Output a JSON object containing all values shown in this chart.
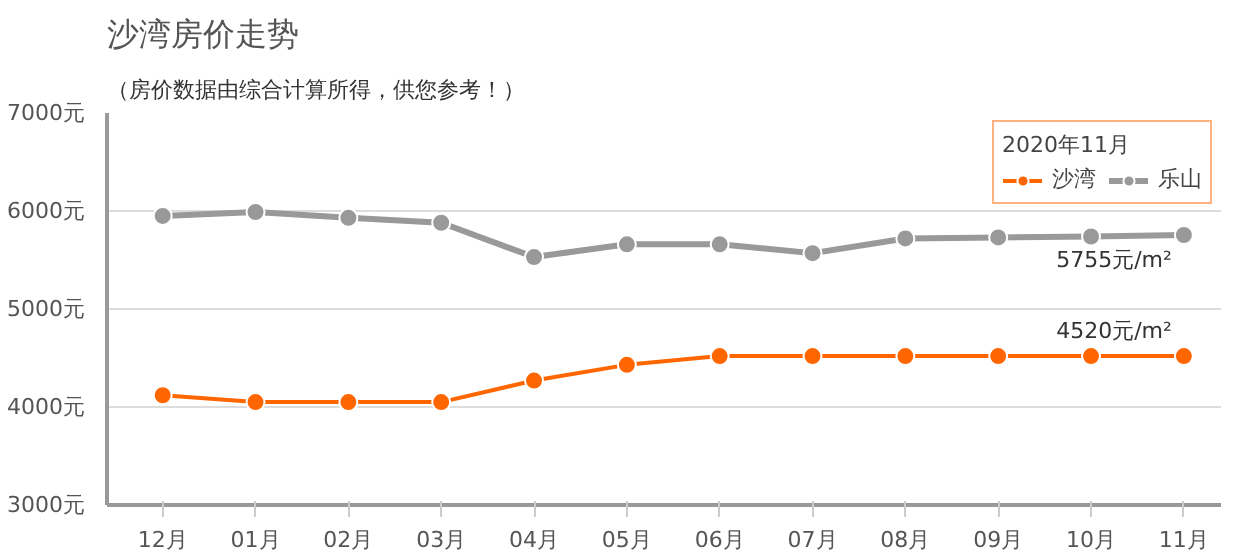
{
  "chart_data": {
    "type": "line",
    "title": "沙湾房价走势",
    "subtitle": "（房价数据由综合计算所得，供您参考！）",
    "categories": [
      "12月",
      "01月",
      "02月",
      "03月",
      "04月",
      "05月",
      "06月",
      "07月",
      "08月",
      "09月",
      "10月",
      "11月"
    ],
    "series": [
      {
        "name": "沙湾",
        "color": "#ff6600",
        "values": [
          4120,
          4050,
          4050,
          4050,
          4270,
          4430,
          4520,
          4520,
          4520,
          4520,
          4520,
          4520
        ],
        "value_labels": [
          null,
          null,
          null,
          null,
          null,
          null,
          null,
          null,
          null,
          null,
          null,
          "4520元/m²"
        ]
      },
      {
        "name": "乐山",
        "color": "#999999",
        "values": [
          5950,
          5990,
          5930,
          5880,
          5530,
          5660,
          5660,
          5570,
          5720,
          5730,
          5740,
          5755
        ],
        "value_labels": [
          null,
          null,
          null,
          null,
          null,
          null,
          null,
          null,
          null,
          null,
          null,
          "5755元/m²"
        ]
      }
    ],
    "ylim": [
      3000,
      7000
    ],
    "yticks": [
      {
        "value": 3000,
        "label": "3000元"
      },
      {
        "value": 4000,
        "label": "4000元"
      },
      {
        "value": 5000,
        "label": "5000元"
      },
      {
        "value": 6000,
        "label": "6000元"
      },
      {
        "value": 7000,
        "label": "7000元"
      }
    ],
    "grid": "y",
    "legend": "top right",
    "legend_title": "2020年11月",
    "marker": "circle",
    "line_style": "solid"
  }
}
